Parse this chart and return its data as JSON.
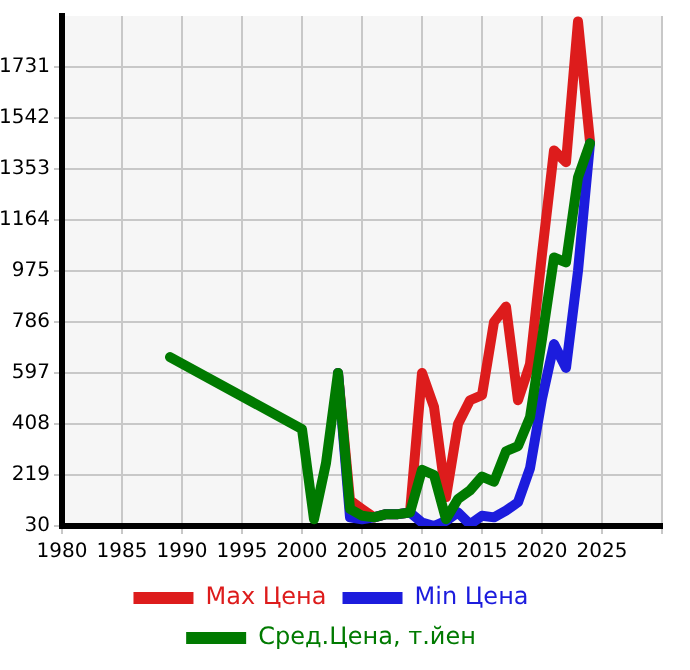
{
  "chart_data": {
    "type": "line",
    "x": [
      1989,
      2000,
      2001,
      2002,
      2003,
      2004,
      2005,
      2006,
      2007,
      2008,
      2009,
      2010,
      2011,
      2012,
      2013,
      2014,
      2015,
      2016,
      2017,
      2018,
      2019,
      2020,
      2021,
      2022,
      2023,
      2024
    ],
    "series": [
      {
        "name": "Max Цена",
        "color": "#dd1c1c",
        "values": [
          null,
          null,
          null,
          null,
          597,
          125,
          93,
          62,
          74,
          74,
          80,
          597,
          471,
          137,
          408,
          496,
          515,
          786,
          843,
          496,
          630,
          1038,
          1422,
          1378,
          1900,
          1454
        ]
      },
      {
        "name": "Min Цена",
        "color": "#1c1cdd",
        "values": [
          null,
          null,
          null,
          null,
          597,
          62,
          55,
          62,
          74,
          74,
          80,
          43,
          30,
          49,
          80,
          36,
          68,
          62,
          87,
          118,
          244,
          502,
          704,
          616,
          975,
          1448
        ]
      },
      {
        "name": "Сред.Цена, т.йен",
        "color": "#007a00",
        "values": [
          656,
          389,
          55,
          263,
          597,
          93,
          68,
          62,
          74,
          74,
          80,
          238,
          219,
          55,
          130,
          162,
          213,
          194,
          307,
          326,
          433,
          723,
          1025,
          1007,
          1322,
          1448
        ]
      }
    ],
    "xlim": [
      1980,
      2030
    ],
    "xticks": [
      1980,
      1985,
      1990,
      1995,
      2000,
      2005,
      2010,
      2015,
      2020,
      2025,
      {
        "value": 2030,
        "label": null
      }
    ],
    "ylim": [
      30,
      1920
    ],
    "yticks": [
      30,
      219,
      408,
      597,
      786,
      975,
      1164,
      1353,
      1542,
      1731
    ],
    "grid": true,
    "legend": "bottom",
    "marker": "none",
    "line_style": "solid"
  }
}
